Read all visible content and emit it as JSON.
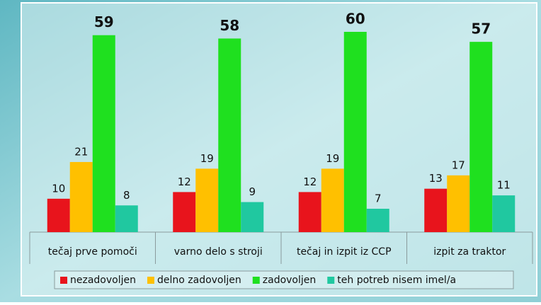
{
  "chart_data": {
    "type": "bar",
    "categories": [
      "tečaj prve pomoči",
      "varno delo s stroji",
      "tečaj in izpit iz CCP",
      "izpit za traktor"
    ],
    "series": [
      {
        "name": "nezadovoljen",
        "color": "#e8141c",
        "values": [
          10,
          12,
          12,
          13
        ]
      },
      {
        "name": "delno zadovoljen",
        "color": "#ffc000",
        "values": [
          21,
          19,
          19,
          17
        ]
      },
      {
        "name": "zadovoljen",
        "color": "#1fe01f",
        "values": [
          59,
          58,
          60,
          57
        ]
      },
      {
        "name": "teh potreb nisem imel/a",
        "color": "#20c8a0",
        "values": [
          8,
          9,
          7,
          11
        ]
      }
    ],
    "legend": "bottom"
  }
}
